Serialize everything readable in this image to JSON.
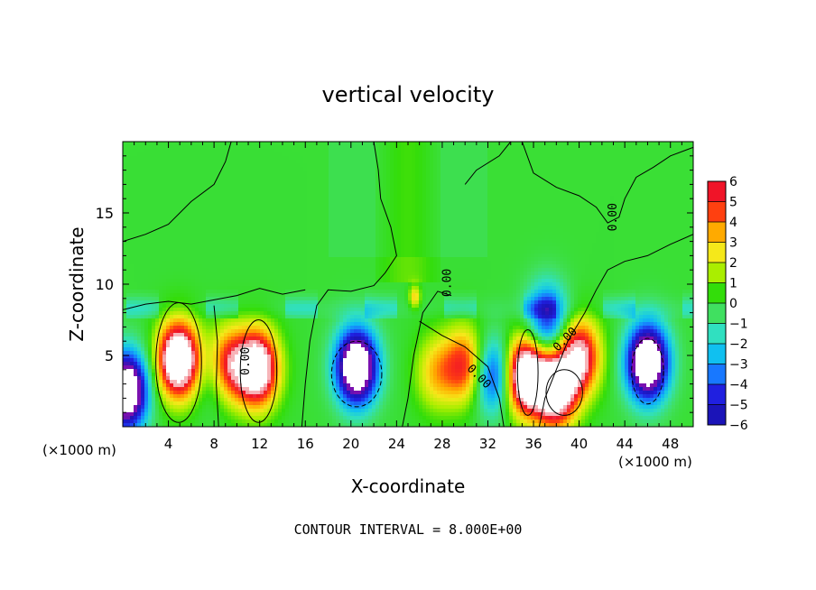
{
  "chart_data": {
    "type": "heatmap",
    "title": "vertical velocity",
    "xlabel": "X-coordinate",
    "ylabel": "Z-coordinate",
    "x_unit_left": "(×1000 m)",
    "x_unit_right": "(×1000 m)",
    "xlim": [
      0,
      50
    ],
    "ylim": [
      0,
      20
    ],
    "x_ticks": [
      4,
      8,
      12,
      16,
      20,
      24,
      28,
      32,
      36,
      40,
      44,
      48
    ],
    "y_ticks": [
      5,
      10,
      15
    ],
    "colorbar": {
      "ticks": [
        6,
        5,
        4,
        3,
        2,
        1,
        0,
        -1,
        -2,
        -3,
        -4,
        -5,
        -6
      ],
      "range": [
        -6,
        6
      ]
    },
    "contour_label": "0.00",
    "footer": "CONTOUR INTERVAL = 8.000E+00",
    "features": [
      {
        "x": 0.3,
        "z": 2.5,
        "w": -10
      },
      {
        "x": 4.9,
        "z": 4.7,
        "w": 10
      },
      {
        "x": 8.5,
        "z": 3.8,
        "w": -4
      },
      {
        "x": 9.1,
        "z": 4.2,
        "w": 8
      },
      {
        "x": 11.8,
        "z": 4.1,
        "w": 9
      },
      {
        "x": 20.5,
        "z": 4.2,
        "w": -10
      },
      {
        "x": 27.5,
        "z": 3.8,
        "w": 3
      },
      {
        "x": 30.0,
        "z": 4.3,
        "w": 5
      },
      {
        "x": 32.5,
        "z": 3.6,
        "w": -5
      },
      {
        "x": 35.3,
        "z": 3.6,
        "w": 10
      },
      {
        "x": 37.2,
        "z": 7.4,
        "w": -5
      },
      {
        "x": 40.0,
        "z": 4.9,
        "w": 7
      },
      {
        "x": 37.9,
        "z": 2.6,
        "w": 9
      },
      {
        "x": 46.0,
        "z": 4.5,
        "w": -10
      },
      {
        "x": 25.6,
        "z": 9.1,
        "w": 3
      }
    ],
    "annotations": [
      {
        "text": "0.00",
        "x": 10.8,
        "z": 4.6,
        "angle": -90
      },
      {
        "text": "0.00",
        "x": 28.5,
        "z": 10.1,
        "angle": -90
      },
      {
        "text": "0.00",
        "x": 31.2,
        "z": 3.5,
        "angle": 45
      },
      {
        "text": "0.00",
        "x": 38.8,
        "z": 6.1,
        "angle": -45
      },
      {
        "text": "0.00",
        "x": 43.0,
        "z": 14.7,
        "angle": -90
      }
    ]
  }
}
